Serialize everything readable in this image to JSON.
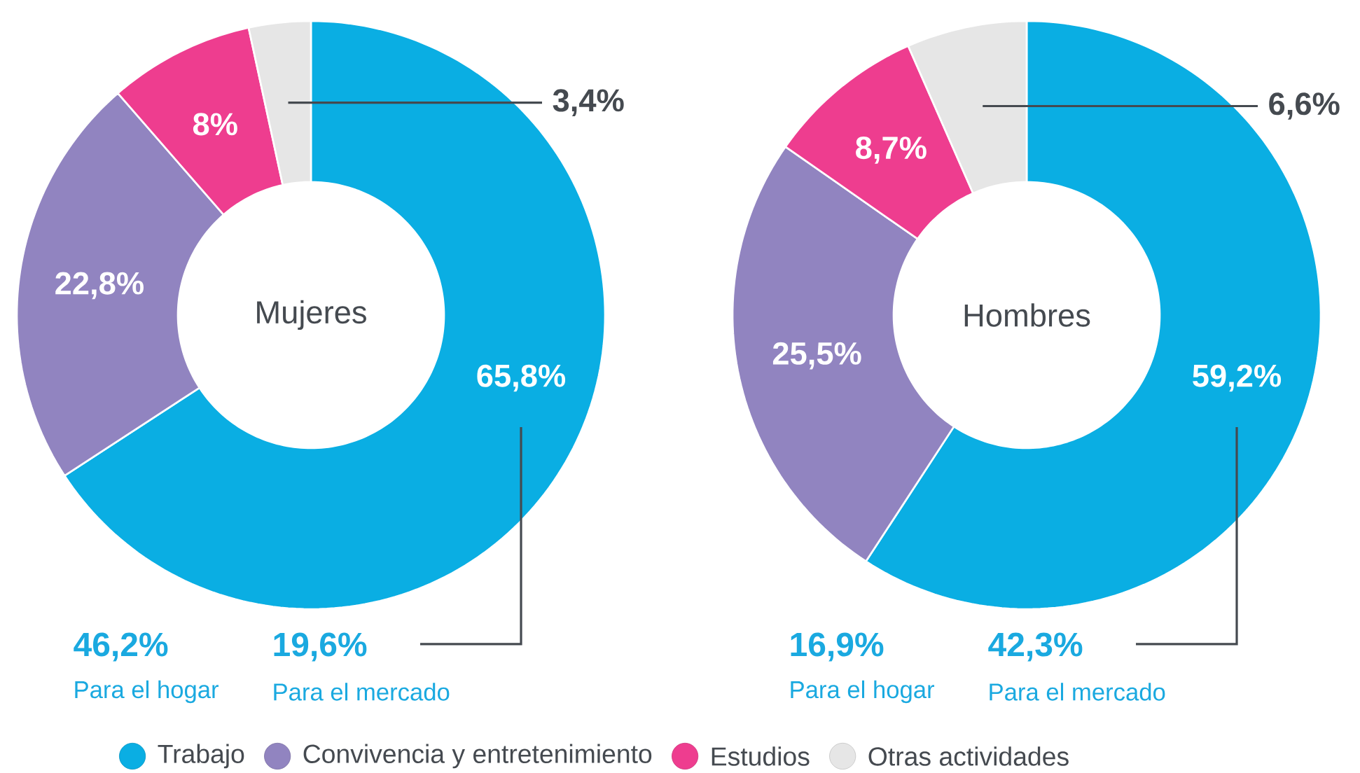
{
  "chart_data": [
    {
      "type": "donut",
      "title": "Mujeres",
      "categories": [
        "Trabajo",
        "Convivencia y entretenimiento",
        "Estudios",
        "Otras actividades"
      ],
      "values": [
        65.8,
        22.8,
        8,
        3.4
      ],
      "value_labels": [
        "65,8%",
        "22,8%",
        "8%",
        "3,4%"
      ],
      "colors": [
        "#0aaee3",
        "#9184c0",
        "#ee3d8f",
        "#e6e6e6"
      ],
      "annotations": [
        "46,2%",
        "Para el hogar",
        "19,6%",
        "Para el mercado"
      ],
      "legend": "bottom"
    },
    {
      "type": "donut",
      "title": "Hombres",
      "categories": [
        null,
        null,
        null,
        null
      ],
      "values": [
        59.2,
        25.5,
        8.7,
        6.6
      ],
      "value_labels": [
        "59,2%",
        "25,5%",
        "8,7%",
        "6,6%"
      ],
      "colors": [
        "#0aaee3",
        "#9184c0",
        "#ee3d8f",
        "#e6e6e6"
      ],
      "annotations": [
        "16,9%",
        "Para el hogar",
        "42,3%",
        "Para el mercado"
      ]
    }
  ]
}
